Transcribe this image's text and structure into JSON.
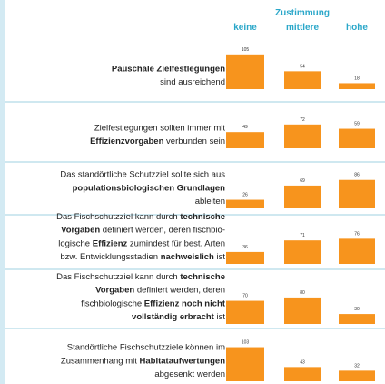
{
  "chart_data": {
    "type": "bar",
    "title": "Zustimmung",
    "categories": [
      "keine",
      "mittlere",
      "hohe"
    ],
    "color": "#f7941d",
    "ylim": [
      0,
      110
    ],
    "rows": [
      {
        "lines": [
          [
            {
              "text": "Pauschale Zielfestlegungen",
              "bold": true
            }
          ],
          [
            {
              "text": "sind ausreichend",
              "bold": false
            }
          ]
        ],
        "values": [
          105,
          54,
          18
        ]
      },
      {
        "lines": [
          [
            {
              "text": "Zielfestlegungen sollten immer mit",
              "bold": false
            }
          ],
          [
            {
              "text": "Effizienzvorgaben",
              "bold": true
            },
            {
              "text": " verbunden sein",
              "bold": false
            }
          ]
        ],
        "values": [
          49,
          72,
          59
        ]
      },
      {
        "lines": [
          [
            {
              "text": "Das standörtliche Schutzziel sollte sich aus",
              "bold": false
            }
          ],
          [
            {
              "text": "populationsbiologischen Grundlagen",
              "bold": true
            }
          ],
          [
            {
              "text": "ableiten",
              "bold": false
            }
          ]
        ],
        "values": [
          26,
          69,
          86
        ]
      },
      {
        "lines": [
          [
            {
              "text": "Das Fischschutzziel kann durch ",
              "bold": false
            },
            {
              "text": "technische",
              "bold": true
            }
          ],
          [
            {
              "text": "Vorgaben",
              "bold": true
            },
            {
              "text": " definiert werden, deren fischbio-",
              "bold": false
            }
          ],
          [
            {
              "text": "logische ",
              "bold": false
            },
            {
              "text": "Effizienz",
              "bold": true
            },
            {
              "text": " zumindest für best. Arten",
              "bold": false
            }
          ],
          [
            {
              "text": "bzw. Entwicklungsstadien ",
              "bold": false
            },
            {
              "text": "nachweislich",
              "bold": true
            },
            {
              "text": " ist",
              "bold": false
            }
          ]
        ],
        "values": [
          36,
          71,
          76
        ]
      },
      {
        "lines": [
          [
            {
              "text": "Das Fischschutzziel kann durch ",
              "bold": false
            },
            {
              "text": "technische",
              "bold": true
            }
          ],
          [
            {
              "text": "Vorgaben",
              "bold": true
            },
            {
              "text": " definiert werden, deren",
              "bold": false
            }
          ],
          [
            {
              "text": "fischbiologische ",
              "bold": false
            },
            {
              "text": "Effizienz noch nicht",
              "bold": true
            }
          ],
          [
            {
              "text": "vollständig erbracht",
              "bold": true
            },
            {
              "text": " ist",
              "bold": false
            }
          ]
        ],
        "values": [
          70,
          80,
          30
        ]
      },
      {
        "lines": [
          [
            {
              "text": "Standörtliche Fischschutzziele können im",
              "bold": false
            }
          ],
          [
            {
              "text": "Zusammenhang mit ",
              "bold": false
            },
            {
              "text": "Habitataufwertungen",
              "bold": true
            }
          ],
          [
            {
              "text": "abgesenkt werden",
              "bold": false
            }
          ]
        ],
        "values": [
          103,
          43,
          32
        ]
      }
    ]
  }
}
